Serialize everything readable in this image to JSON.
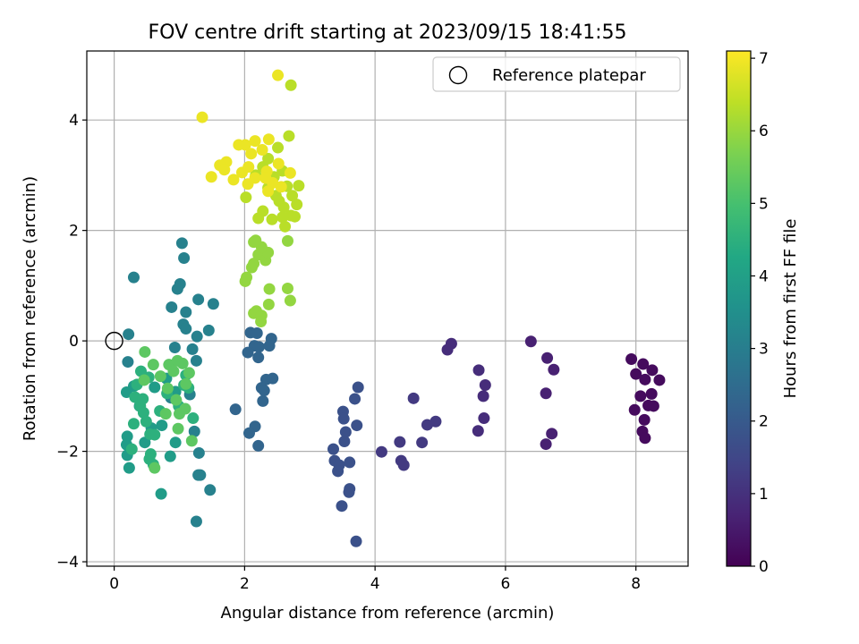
{
  "chart_data": {
    "type": "scatter",
    "title": "FOV centre drift starting at 2023/09/15 18:41:55",
    "xlabel": "Angular distance from reference (arcmin)",
    "ylabel": "Rotation from reference (arcmin)",
    "xlim": [
      -0.42,
      8.8
    ],
    "ylim": [
      -4.08,
      5.25
    ],
    "xticks": [
      0,
      2,
      4,
      6,
      8
    ],
    "xtick_labels": [
      "0",
      "2",
      "4",
      "6",
      "8"
    ],
    "yticks": [
      -4,
      -2,
      0,
      2,
      4
    ],
    "ytick_labels": [
      "−4",
      "−2",
      "0",
      "2",
      "4"
    ],
    "grid": true,
    "legend": {
      "position": "top-right",
      "entries": [
        {
          "label": "Reference platepar",
          "marker": "open-circle"
        }
      ]
    },
    "reference_point": {
      "x": 0,
      "y": 0
    },
    "colorbar": {
      "label": "Hours from first FF file",
      "colormap": "viridis",
      "range": [
        0,
        7.1
      ],
      "ticks": [
        0,
        1,
        2,
        3,
        4,
        5,
        6,
        7
      ],
      "tick_labels": [
        "0",
        "1",
        "2",
        "3",
        "4",
        "5",
        "6",
        "7"
      ]
    },
    "points": [
      [
        7.93,
        -0.33,
        0.2
      ],
      [
        8.0,
        -0.6,
        0.2
      ],
      [
        8.11,
        -0.42,
        0.2
      ],
      [
        8.25,
        -0.53,
        0.2
      ],
      [
        8.36,
        -0.71,
        0.2
      ],
      [
        8.14,
        -0.7,
        0.2
      ],
      [
        8.07,
        -1.0,
        0.2
      ],
      [
        8.24,
        -0.96,
        0.2
      ],
      [
        8.19,
        -1.17,
        0.2
      ],
      [
        7.98,
        -1.25,
        0.2
      ],
      [
        8.13,
        -1.43,
        0.2
      ],
      [
        8.1,
        -1.64,
        0.2
      ],
      [
        8.14,
        -1.76,
        0.2
      ],
      [
        8.27,
        -1.18,
        0.2
      ],
      [
        6.39,
        -0.01,
        0.65
      ],
      [
        6.64,
        -0.31,
        0.65
      ],
      [
        6.74,
        -0.52,
        0.65
      ],
      [
        6.62,
        -0.95,
        0.65
      ],
      [
        6.71,
        -1.68,
        0.65
      ],
      [
        6.62,
        -1.87,
        0.65
      ],
      [
        5.17,
        -0.05,
        0.9
      ],
      [
        5.11,
        -0.16,
        0.9
      ],
      [
        5.59,
        -0.53,
        0.9
      ],
      [
        5.69,
        -0.8,
        0.9
      ],
      [
        5.66,
        -1.0,
        0.9
      ],
      [
        5.67,
        -1.4,
        0.9
      ],
      [
        5.58,
        -1.63,
        0.9
      ],
      [
        4.59,
        -1.04,
        1.2
      ],
      [
        4.8,
        -1.52,
        1.2
      ],
      [
        4.93,
        -1.46,
        1.2
      ],
      [
        4.72,
        -1.84,
        1.2
      ],
      [
        4.38,
        -1.83,
        1.2
      ],
      [
        4.4,
        -2.17,
        1.2
      ],
      [
        4.44,
        -2.25,
        1.2
      ],
      [
        4.1,
        -2.01,
        1.2
      ],
      [
        3.74,
        -0.84,
        1.75
      ],
      [
        3.69,
        -1.05,
        1.75
      ],
      [
        3.51,
        -1.28,
        1.75
      ],
      [
        3.52,
        -1.41,
        1.75
      ],
      [
        3.72,
        -1.53,
        1.75
      ],
      [
        3.55,
        -1.65,
        1.75
      ],
      [
        3.53,
        -1.82,
        1.75
      ],
      [
        3.36,
        -1.96,
        1.75
      ],
      [
        3.38,
        -2.17,
        1.75
      ],
      [
        3.45,
        -2.25,
        1.75
      ],
      [
        3.43,
        -2.36,
        1.75
      ],
      [
        3.61,
        -2.2,
        1.75
      ],
      [
        3.61,
        -2.68,
        1.75
      ],
      [
        3.6,
        -2.74,
        1.75
      ],
      [
        3.49,
        -2.99,
        1.75
      ],
      [
        3.71,
        -3.63,
        1.75
      ],
      [
        2.09,
        0.15,
        2.3
      ],
      [
        2.19,
        0.14,
        2.3
      ],
      [
        2.41,
        0.04,
        2.3
      ],
      [
        2.15,
        -0.09,
        2.3
      ],
      [
        2.22,
        -0.11,
        2.3
      ],
      [
        2.38,
        -0.09,
        2.3
      ],
      [
        2.05,
        -0.21,
        2.3
      ],
      [
        2.21,
        -0.3,
        2.3
      ],
      [
        2.33,
        -0.7,
        2.3
      ],
      [
        2.43,
        -0.68,
        2.3
      ],
      [
        2.26,
        -0.85,
        2.3
      ],
      [
        2.3,
        -0.9,
        2.3
      ],
      [
        2.28,
        -1.09,
        2.3
      ],
      [
        2.16,
        -1.55,
        2.3
      ],
      [
        2.07,
        -1.67,
        2.3
      ],
      [
        2.21,
        -1.9,
        2.3
      ],
      [
        1.86,
        -1.24,
        2.3
      ],
      [
        1.29,
        0.75,
        3.1
      ],
      [
        1.52,
        0.67,
        3.1
      ],
      [
        1.1,
        0.52,
        3.1
      ],
      [
        1.06,
        0.3,
        3.1
      ],
      [
        1.1,
        0.22,
        3.1
      ],
      [
        1.45,
        0.19,
        3.1
      ],
      [
        0.88,
        0.61,
        3.1
      ],
      [
        1.01,
        1.03,
        3.1
      ],
      [
        1.07,
        1.5,
        3.1
      ],
      [
        1.04,
        1.77,
        3.1
      ],
      [
        0.97,
        0.94,
        3.1
      ],
      [
        0.3,
        1.15,
        3.1
      ],
      [
        0.22,
        0.12,
        3.1
      ],
      [
        1.27,
        0.08,
        3.1
      ],
      [
        0.93,
        -0.12,
        3.1
      ],
      [
        1.2,
        -0.15,
        3.1
      ],
      [
        1.26,
        -0.36,
        3.1
      ],
      [
        0.21,
        -0.38,
        3.1
      ],
      [
        1.47,
        -2.7,
        3.1
      ],
      [
        1.26,
        -3.27,
        3.1
      ],
      [
        1.32,
        -2.43,
        3.1
      ],
      [
        1.29,
        -2.43,
        3.1
      ],
      [
        1.3,
        -2.03,
        3.1
      ],
      [
        1.23,
        -1.64,
        3.1
      ],
      [
        1.16,
        -0.97,
        3.1
      ],
      [
        0.87,
        -1.03,
        3.1
      ],
      [
        0.72,
        -2.77,
        3.9
      ],
      [
        0.94,
        -1.84,
        3.9
      ],
      [
        0.86,
        -2.09,
        3.9
      ],
      [
        0.47,
        -1.84,
        3.9
      ],
      [
        0.19,
        -0.93,
        3.9
      ],
      [
        0.3,
        -0.82,
        3.9
      ],
      [
        0.39,
        -1.18,
        3.9
      ],
      [
        0.2,
        -1.73,
        3.9
      ],
      [
        0.19,
        -1.88,
        3.9
      ],
      [
        0.2,
        -2.07,
        3.9
      ],
      [
        0.23,
        -2.3,
        3.9
      ],
      [
        0.62,
        -0.84,
        3.9
      ],
      [
        0.8,
        -0.68,
        3.9
      ],
      [
        0.94,
        -0.92,
        3.9
      ],
      [
        0.57,
        -1.58,
        3.9
      ],
      [
        0.73,
        -1.53,
        3.9
      ],
      [
        0.35,
        -0.79,
        4.5
      ],
      [
        0.41,
        -0.55,
        4.5
      ],
      [
        0.53,
        -0.66,
        4.5
      ],
      [
        0.32,
        -1.02,
        4.5
      ],
      [
        0.4,
        -1.18,
        4.5
      ],
      [
        0.45,
        -1.3,
        4.5
      ],
      [
        0.49,
        -1.46,
        4.5
      ],
      [
        0.55,
        -1.69,
        4.5
      ],
      [
        0.3,
        -1.5,
        4.5
      ],
      [
        0.27,
        -1.96,
        4.5
      ],
      [
        0.44,
        -1.05,
        4.5
      ],
      [
        0.7,
        -1.27,
        4.5
      ],
      [
        0.81,
        -0.95,
        4.5
      ],
      [
        1.07,
        -0.8,
        4.5
      ],
      [
        1.1,
        -0.62,
        4.5
      ],
      [
        1.14,
        -0.85,
        4.5
      ],
      [
        1.21,
        -1.4,
        4.5
      ],
      [
        0.99,
        -1.18,
        4.5
      ],
      [
        0.62,
        -1.7,
        4.5
      ],
      [
        0.56,
        -2.05,
        4.5
      ],
      [
        0.6,
        -2.24,
        4.5
      ],
      [
        0.54,
        -2.14,
        4.5
      ],
      [
        0.47,
        -0.2,
        5.3
      ],
      [
        0.6,
        -0.43,
        5.3
      ],
      [
        0.71,
        -0.64,
        5.3
      ],
      [
        0.84,
        -0.43,
        5.3
      ],
      [
        0.97,
        -0.36,
        5.3
      ],
      [
        1.05,
        -0.41,
        5.3
      ],
      [
        0.91,
        -0.55,
        5.3
      ],
      [
        0.46,
        -0.71,
        5.3
      ],
      [
        0.79,
        -1.32,
        5.3
      ],
      [
        0.95,
        -1.07,
        5.3
      ],
      [
        1.0,
        -1.32,
        5.3
      ],
      [
        1.09,
        -1.23,
        5.3
      ],
      [
        0.98,
        -1.59,
        5.3
      ],
      [
        1.19,
        -1.81,
        5.3
      ],
      [
        0.62,
        -2.3,
        5.3
      ],
      [
        0.82,
        -0.86,
        5.3
      ],
      [
        1.1,
        -0.78,
        5.3
      ],
      [
        1.15,
        -0.58,
        5.3
      ],
      [
        2.01,
        1.08,
        5.95
      ],
      [
        2.03,
        1.15,
        5.95
      ],
      [
        2.11,
        1.33,
        5.95
      ],
      [
        2.14,
        1.4,
        5.95
      ],
      [
        2.21,
        1.56,
        5.95
      ],
      [
        2.32,
        1.46,
        5.95
      ],
      [
        2.36,
        1.6,
        5.95
      ],
      [
        2.14,
        1.79,
        5.95
      ],
      [
        2.26,
        1.7,
        5.95
      ],
      [
        2.38,
        0.94,
        5.95
      ],
      [
        2.37,
        0.66,
        5.95
      ],
      [
        2.14,
        0.5,
        5.95
      ],
      [
        2.18,
        0.54,
        5.95
      ],
      [
        2.26,
        0.46,
        5.95
      ],
      [
        2.25,
        0.35,
        5.95
      ],
      [
        2.66,
        0.95,
        5.95
      ],
      [
        2.7,
        0.73,
        5.95
      ],
      [
        2.66,
        1.81,
        5.95
      ],
      [
        2.17,
        1.82,
        5.95
      ],
      [
        2.62,
        2.07,
        6.35
      ],
      [
        2.71,
        2.27,
        6.35
      ],
      [
        2.8,
        2.47,
        6.35
      ],
      [
        2.58,
        2.24,
        6.35
      ],
      [
        2.42,
        2.2,
        6.35
      ],
      [
        2.28,
        2.35,
        6.35
      ],
      [
        2.21,
        2.22,
        6.35
      ],
      [
        2.02,
        2.6,
        6.35
      ],
      [
        2.36,
        2.77,
        6.35
      ],
      [
        2.48,
        2.63,
        6.35
      ],
      [
        2.65,
        2.8,
        6.35
      ],
      [
        2.6,
        2.42,
        6.35
      ],
      [
        2.53,
        2.53,
        6.35
      ],
      [
        2.73,
        2.63,
        6.35
      ],
      [
        2.77,
        2.25,
        6.35
      ],
      [
        2.68,
        3.71,
        6.35
      ],
      [
        2.51,
        3.5,
        6.35
      ],
      [
        2.36,
        3.3,
        6.35
      ],
      [
        2.28,
        3.15,
        6.35
      ],
      [
        2.17,
        3.0,
        6.35
      ],
      [
        2.58,
        3.08,
        6.35
      ],
      [
        2.83,
        2.81,
        6.35
      ],
      [
        2.45,
        2.97,
        6.35
      ],
      [
        2.71,
        4.63,
        6.35
      ],
      [
        2.51,
        4.81,
        6.9
      ],
      [
        1.35,
        4.05,
        6.9
      ],
      [
        2.01,
        3.55,
        6.9
      ],
      [
        1.91,
        3.55,
        6.9
      ],
      [
        2.16,
        3.62,
        6.9
      ],
      [
        2.37,
        3.65,
        6.9
      ],
      [
        2.27,
        3.46,
        6.9
      ],
      [
        2.1,
        3.39,
        6.9
      ],
      [
        1.72,
        3.24,
        6.9
      ],
      [
        1.62,
        3.18,
        6.9
      ],
      [
        1.69,
        3.1,
        6.9
      ],
      [
        1.83,
        2.92,
        6.9
      ],
      [
        1.49,
        2.97,
        6.9
      ],
      [
        1.96,
        3.05,
        6.9
      ],
      [
        2.06,
        3.15,
        6.9
      ],
      [
        2.34,
        3.07,
        6.9
      ],
      [
        2.52,
        3.21,
        6.9
      ],
      [
        2.7,
        3.04,
        6.9
      ],
      [
        2.43,
        2.86,
        6.9
      ],
      [
        2.32,
        2.95,
        6.9
      ],
      [
        2.16,
        2.95,
        6.9
      ],
      [
        2.05,
        2.84,
        6.9
      ],
      [
        2.36,
        2.71,
        6.9
      ],
      [
        2.56,
        2.79,
        6.9
      ]
    ]
  }
}
